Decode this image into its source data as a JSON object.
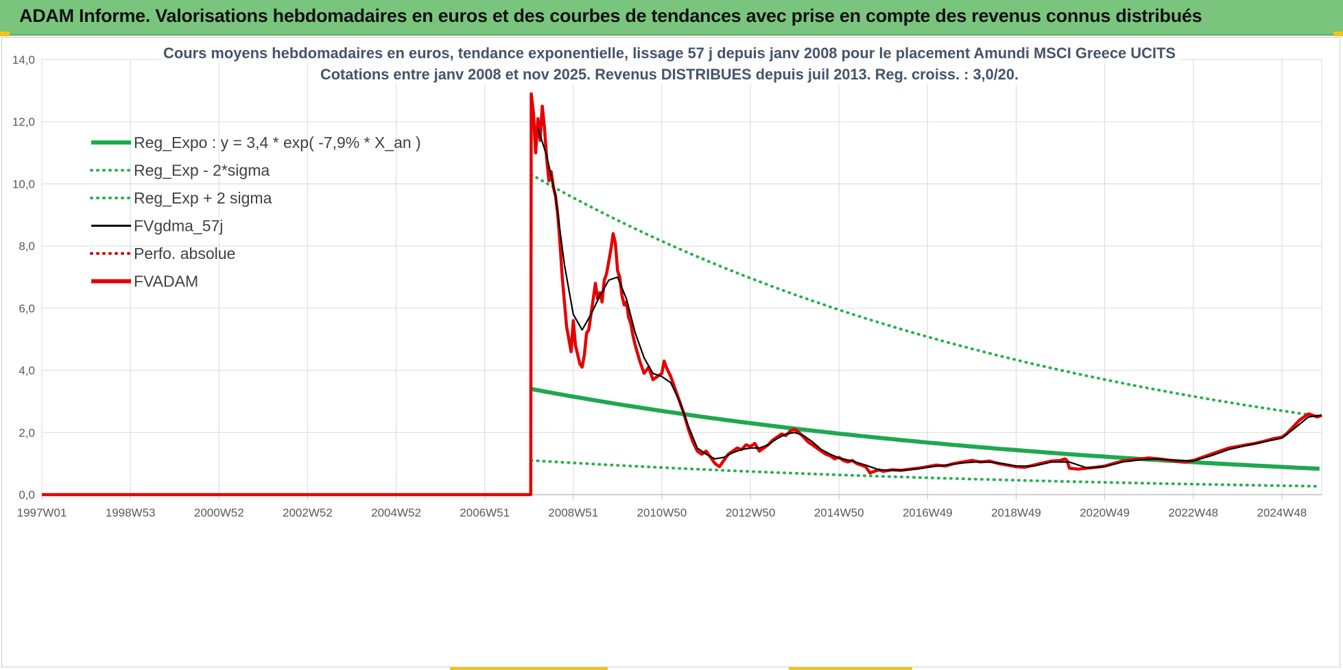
{
  "header": {
    "title": "ADAM Informe. Valorisations hebdomadaires en euros et des courbes de tendances avec prise en compte des revenus connus distribués"
  },
  "colors": {
    "header_bg": "#7ac57d",
    "reg_green": "#1fa84f",
    "sigma_green": "#23b04d",
    "gdma_black": "#000000",
    "fvadam_red": "#e60000",
    "perfo_red": "#d40000",
    "grid": "#d9d9d9"
  },
  "chart_data": {
    "type": "line",
    "title_line1": "Cours moyens hebdomadaires en euros, tendance exponentielle, lissage 57 j depuis janv 2008 pour le placement Amundi MSCI Greece UCITS",
    "title_line2": "Cotations entre janv 2008 et nov 2025. Revenus DISTRIBUES depuis juil 2013. Reg. croiss. : 3,0/20.",
    "ylim": [
      0,
      14
    ],
    "y_ticks": [
      "0,0",
      "2,0",
      "4,0",
      "6,0",
      "8,0",
      "10,0",
      "12,0",
      "14,0"
    ],
    "x_range_years": [
      1997.0,
      2025.9
    ],
    "x_ticks": [
      {
        "label": "1997W01",
        "year": 1997.0
      },
      {
        "label": "1998W53",
        "year": 1999.0
      },
      {
        "label": "2000W52",
        "year": 2001.0
      },
      {
        "label": "2002W52",
        "year": 2003.0
      },
      {
        "label": "2004W52",
        "year": 2005.0
      },
      {
        "label": "2006W51",
        "year": 2007.0
      },
      {
        "label": "2008W51",
        "year": 2009.0
      },
      {
        "label": "2010W50",
        "year": 2011.0
      },
      {
        "label": "2012W50",
        "year": 2013.0
      },
      {
        "label": "2014W50",
        "year": 2015.0
      },
      {
        "label": "2016W49",
        "year": 2017.0
      },
      {
        "label": "2018W49",
        "year": 2019.0
      },
      {
        "label": "2020W49",
        "year": 2021.0
      },
      {
        "label": "2022W48",
        "year": 2023.0
      },
      {
        "label": "2024W48",
        "year": 2025.0
      }
    ],
    "grid": true,
    "legend_position": "top-left",
    "legend": [
      {
        "label": "Reg_Expo : y = 3,4 * exp( -7,9% *  X_an )",
        "style": "solid-thick",
        "color": "#1fa84f"
      },
      {
        "label": "Reg_Exp - 2*sigma",
        "style": "dotted",
        "color": "#23b04d"
      },
      {
        "label": "Reg_Exp + 2 sigma",
        "style": "dotted",
        "color": "#23b04d"
      },
      {
        "label": "FVgdma_57j",
        "style": "solid",
        "color": "#000000"
      },
      {
        "label": "Perfo. absolue",
        "style": "dotted",
        "color": "#d40000"
      },
      {
        "label": "FVADAM",
        "style": "solid-thick",
        "color": "#e60000"
      }
    ],
    "regression": {
      "a": 3.4,
      "rate": -0.079,
      "start_year": 2008.05,
      "end_year": 2025.9,
      "minus2sigma_start": 1.1,
      "plus2sigma_start": 10.3
    },
    "series": [
      {
        "name": "FVADAM",
        "points": [
          [
            1997.0,
            0
          ],
          [
            2008.04,
            0
          ],
          [
            2008.05,
            12.9
          ],
          [
            2008.1,
            12.3
          ],
          [
            2008.15,
            11.0
          ],
          [
            2008.2,
            12.1
          ],
          [
            2008.25,
            11.4
          ],
          [
            2008.3,
            12.5
          ],
          [
            2008.35,
            11.8
          ],
          [
            2008.4,
            10.8
          ],
          [
            2008.45,
            10.1
          ],
          [
            2008.5,
            10.4
          ],
          [
            2008.55,
            9.9
          ],
          [
            2008.6,
            9.6
          ],
          [
            2008.65,
            9.0
          ],
          [
            2008.7,
            8.1
          ],
          [
            2008.75,
            7.0
          ],
          [
            2008.8,
            6.2
          ],
          [
            2008.85,
            5.4
          ],
          [
            2008.9,
            5.0
          ],
          [
            2008.95,
            4.6
          ],
          [
            2009.0,
            5.6
          ],
          [
            2009.05,
            4.8
          ],
          [
            2009.1,
            4.5
          ],
          [
            2009.15,
            4.2
          ],
          [
            2009.2,
            4.1
          ],
          [
            2009.25,
            4.5
          ],
          [
            2009.3,
            5.2
          ],
          [
            2009.35,
            5.3
          ],
          [
            2009.4,
            5.8
          ],
          [
            2009.45,
            6.3
          ],
          [
            2009.5,
            6.8
          ],
          [
            2009.55,
            6.3
          ],
          [
            2009.6,
            6.5
          ],
          [
            2009.65,
            6.2
          ],
          [
            2009.7,
            6.9
          ],
          [
            2009.75,
            7.1
          ],
          [
            2009.8,
            7.5
          ],
          [
            2009.85,
            7.9
          ],
          [
            2009.9,
            8.4
          ],
          [
            2009.95,
            8.1
          ],
          [
            2010.0,
            7.2
          ],
          [
            2010.05,
            7.0
          ],
          [
            2010.1,
            6.4
          ],
          [
            2010.15,
            6.1
          ],
          [
            2010.2,
            6.2
          ],
          [
            2010.25,
            5.7
          ],
          [
            2010.3,
            5.5
          ],
          [
            2010.35,
            5.1
          ],
          [
            2010.4,
            4.8
          ],
          [
            2010.5,
            4.3
          ],
          [
            2010.6,
            3.9
          ],
          [
            2010.7,
            4.1
          ],
          [
            2010.8,
            3.7
          ],
          [
            2010.9,
            3.8
          ],
          [
            2011.0,
            3.9
          ],
          [
            2011.05,
            4.3
          ],
          [
            2011.1,
            4.1
          ],
          [
            2011.2,
            3.8
          ],
          [
            2011.3,
            3.4
          ],
          [
            2011.4,
            3.0
          ],
          [
            2011.5,
            2.6
          ],
          [
            2011.6,
            2.1
          ],
          [
            2011.7,
            1.7
          ],
          [
            2011.8,
            1.4
          ],
          [
            2011.9,
            1.3
          ],
          [
            2012.0,
            1.4
          ],
          [
            2012.1,
            1.2
          ],
          [
            2012.2,
            1.0
          ],
          [
            2012.3,
            0.9
          ],
          [
            2012.4,
            1.1
          ],
          [
            2012.5,
            1.3
          ],
          [
            2012.6,
            1.4
          ],
          [
            2012.7,
            1.5
          ],
          [
            2012.8,
            1.45
          ],
          [
            2012.9,
            1.6
          ],
          [
            2013.0,
            1.55
          ],
          [
            2013.1,
            1.65
          ],
          [
            2013.2,
            1.4
          ],
          [
            2013.3,
            1.5
          ],
          [
            2013.4,
            1.6
          ],
          [
            2013.5,
            1.75
          ],
          [
            2013.6,
            1.85
          ],
          [
            2013.7,
            1.95
          ],
          [
            2013.8,
            1.9
          ],
          [
            2013.9,
            2.05
          ],
          [
            2014.0,
            2.1
          ],
          [
            2014.1,
            2.0
          ],
          [
            2014.2,
            1.85
          ],
          [
            2014.3,
            1.7
          ],
          [
            2014.4,
            1.6
          ],
          [
            2014.5,
            1.5
          ],
          [
            2014.6,
            1.4
          ],
          [
            2014.7,
            1.3
          ],
          [
            2014.8,
            1.25
          ],
          [
            2014.9,
            1.15
          ],
          [
            2015.0,
            1.2
          ],
          [
            2015.1,
            1.1
          ],
          [
            2015.2,
            1.05
          ],
          [
            2015.3,
            1.1
          ],
          [
            2015.4,
            1.0
          ],
          [
            2015.5,
            0.95
          ],
          [
            2015.6,
            0.9
          ],
          [
            2015.7,
            0.7
          ],
          [
            2015.8,
            0.75
          ],
          [
            2015.9,
            0.8
          ],
          [
            2016.0,
            0.75
          ],
          [
            2016.2,
            0.8
          ],
          [
            2016.4,
            0.78
          ],
          [
            2016.6,
            0.82
          ],
          [
            2016.8,
            0.85
          ],
          [
            2017.0,
            0.9
          ],
          [
            2017.2,
            0.95
          ],
          [
            2017.4,
            0.92
          ],
          [
            2017.6,
            1.0
          ],
          [
            2017.8,
            1.05
          ],
          [
            2018.0,
            1.1
          ],
          [
            2018.2,
            1.05
          ],
          [
            2018.4,
            1.08
          ],
          [
            2018.6,
            1.0
          ],
          [
            2018.8,
            0.95
          ],
          [
            2019.0,
            0.9
          ],
          [
            2019.2,
            0.88
          ],
          [
            2019.4,
            0.95
          ],
          [
            2019.6,
            1.02
          ],
          [
            2019.8,
            1.08
          ],
          [
            2020.0,
            1.1
          ],
          [
            2020.1,
            1.15
          ],
          [
            2020.15,
            1.1
          ],
          [
            2020.2,
            0.85
          ],
          [
            2020.4,
            0.82
          ],
          [
            2020.6,
            0.85
          ],
          [
            2020.8,
            0.88
          ],
          [
            2021.0,
            0.92
          ],
          [
            2021.2,
            1.0
          ],
          [
            2021.4,
            1.08
          ],
          [
            2021.6,
            1.12
          ],
          [
            2021.8,
            1.15
          ],
          [
            2022.0,
            1.18
          ],
          [
            2022.2,
            1.15
          ],
          [
            2022.4,
            1.12
          ],
          [
            2022.6,
            1.08
          ],
          [
            2022.8,
            1.05
          ],
          [
            2023.0,
            1.1
          ],
          [
            2023.2,
            1.2
          ],
          [
            2023.4,
            1.3
          ],
          [
            2023.6,
            1.4
          ],
          [
            2023.8,
            1.5
          ],
          [
            2024.0,
            1.55
          ],
          [
            2024.2,
            1.6
          ],
          [
            2024.4,
            1.65
          ],
          [
            2024.6,
            1.72
          ],
          [
            2024.8,
            1.8
          ],
          [
            2025.0,
            1.85
          ],
          [
            2025.1,
            1.95
          ],
          [
            2025.2,
            2.1
          ],
          [
            2025.3,
            2.25
          ],
          [
            2025.4,
            2.4
          ],
          [
            2025.5,
            2.5
          ],
          [
            2025.6,
            2.6
          ],
          [
            2025.7,
            2.55
          ],
          [
            2025.8,
            2.5
          ],
          [
            2025.9,
            2.55
          ]
        ]
      },
      {
        "name": "FVgdma_57j",
        "points": [
          [
            2008.2,
            11.8
          ],
          [
            2008.4,
            10.9
          ],
          [
            2008.6,
            9.6
          ],
          [
            2008.8,
            7.4
          ],
          [
            2009.0,
            5.8
          ],
          [
            2009.2,
            5.3
          ],
          [
            2009.4,
            5.8
          ],
          [
            2009.6,
            6.4
          ],
          [
            2009.8,
            6.9
          ],
          [
            2010.0,
            7.0
          ],
          [
            2010.2,
            6.3
          ],
          [
            2010.4,
            5.2
          ],
          [
            2010.6,
            4.4
          ],
          [
            2010.8,
            3.9
          ],
          [
            2011.0,
            3.8
          ],
          [
            2011.2,
            3.6
          ],
          [
            2011.4,
            3.0
          ],
          [
            2011.6,
            2.2
          ],
          [
            2011.8,
            1.5
          ],
          [
            2012.0,
            1.3
          ],
          [
            2012.2,
            1.15
          ],
          [
            2012.4,
            1.2
          ],
          [
            2012.6,
            1.35
          ],
          [
            2012.8,
            1.45
          ],
          [
            2013.0,
            1.5
          ],
          [
            2013.2,
            1.5
          ],
          [
            2013.4,
            1.6
          ],
          [
            2013.6,
            1.8
          ],
          [
            2013.8,
            1.95
          ],
          [
            2014.0,
            2.0
          ],
          [
            2014.2,
            1.9
          ],
          [
            2014.4,
            1.7
          ],
          [
            2014.6,
            1.45
          ],
          [
            2014.8,
            1.3
          ],
          [
            2015.0,
            1.18
          ],
          [
            2015.3,
            1.08
          ],
          [
            2015.6,
            0.95
          ],
          [
            2015.9,
            0.8
          ],
          [
            2016.2,
            0.78
          ],
          [
            2016.6,
            0.8
          ],
          [
            2017.0,
            0.88
          ],
          [
            2017.4,
            0.95
          ],
          [
            2017.8,
            1.02
          ],
          [
            2018.2,
            1.06
          ],
          [
            2018.6,
            1.02
          ],
          [
            2019.0,
            0.92
          ],
          [
            2019.4,
            0.92
          ],
          [
            2019.8,
            1.05
          ],
          [
            2020.2,
            1.05
          ],
          [
            2020.6,
            0.86
          ],
          [
            2021.0,
            0.9
          ],
          [
            2021.4,
            1.05
          ],
          [
            2021.8,
            1.12
          ],
          [
            2022.2,
            1.15
          ],
          [
            2022.6,
            1.1
          ],
          [
            2023.0,
            1.08
          ],
          [
            2023.4,
            1.25
          ],
          [
            2023.8,
            1.45
          ],
          [
            2024.2,
            1.58
          ],
          [
            2024.6,
            1.7
          ],
          [
            2025.0,
            1.82
          ],
          [
            2025.3,
            2.15
          ],
          [
            2025.6,
            2.5
          ],
          [
            2025.9,
            2.55
          ]
        ]
      }
    ]
  }
}
